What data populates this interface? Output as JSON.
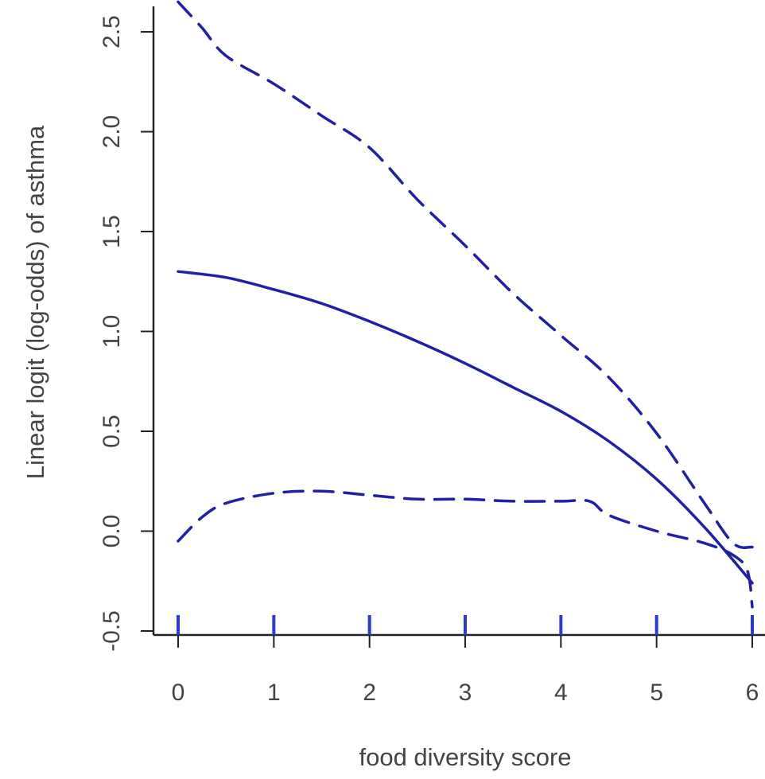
{
  "chart_data": {
    "type": "line",
    "title": "",
    "xlabel": "food diversity score",
    "ylabel": "Linear logit (log-odds) of asthma",
    "xlim": [
      0,
      6
    ],
    "ylim": [
      -0.5,
      2.5
    ],
    "x_ticks": [
      "0",
      "1",
      "2",
      "3",
      "4",
      "5",
      "6"
    ],
    "y_ticks": [
      "-0.5",
      "0.0",
      "0.5",
      "1.0",
      "1.5",
      "2.0",
      "2.5"
    ],
    "grid": false,
    "rug": [
      0,
      1,
      2,
      3,
      4,
      5,
      6
    ],
    "series": [
      {
        "style": "solid",
        "x": [
          0,
          0.5,
          1,
          1.5,
          2,
          2.5,
          3,
          3.5,
          4,
          4.5,
          5,
          5.5,
          6
        ],
        "y": [
          1.3,
          1.27,
          1.21,
          1.14,
          1.05,
          0.95,
          0.84,
          0.72,
          0.6,
          0.45,
          0.26,
          0.02,
          -0.26
        ]
      },
      {
        "style": "dashed",
        "x": [
          0,
          0.25,
          0.5,
          1,
          1.5,
          2,
          2.5,
          3,
          3.5,
          4,
          4.5,
          5,
          5.5,
          5.8,
          6
        ],
        "y": [
          2.65,
          2.52,
          2.38,
          2.24,
          2.08,
          1.92,
          1.66,
          1.43,
          1.19,
          0.98,
          0.77,
          0.49,
          0.14,
          -0.06,
          -0.08
        ]
      },
      {
        "style": "dashed",
        "x": [
          0,
          0.25,
          0.5,
          1,
          1.5,
          2,
          2.5,
          3,
          3.5,
          4,
          4.3,
          4.5,
          5,
          5.5,
          5.8,
          5.95,
          6
        ],
        "y": [
          -0.05,
          0.07,
          0.14,
          0.19,
          0.2,
          0.18,
          0.16,
          0.16,
          0.15,
          0.15,
          0.15,
          0.08,
          0.0,
          -0.06,
          -0.12,
          -0.2,
          -0.38
        ]
      }
    ],
    "colors": {
      "line": "#1f1fa8",
      "axis": "#222222",
      "rug": "#2b3ad6",
      "text": "#444444"
    }
  }
}
